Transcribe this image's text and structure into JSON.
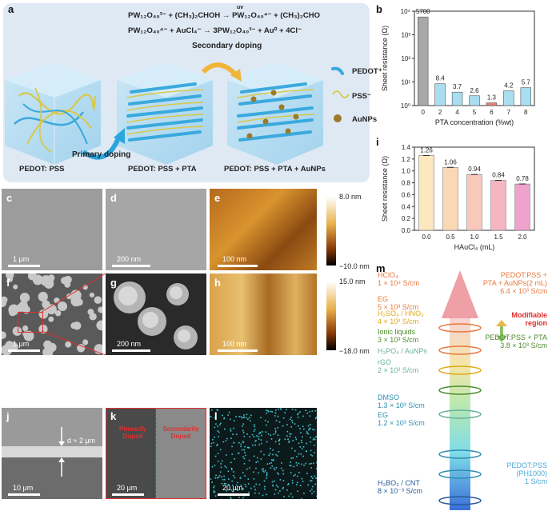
{
  "panel_a": {
    "label": "a",
    "eq1": "PW₁₂O₄₀³⁻ + (CH₃)₂CHOH → PW₁₂O₄₀⁴⁻ + (CH₃)₂CHO",
    "eq1_uv": "uv",
    "eq2": "PW₁₂O₄₀⁴⁻ + AuCl₄⁻ → 3PW₁₂O₄₀³⁻ + Au⁰ + 4Cl⁻",
    "secondary_doping": "Secondary doping",
    "primary_doping": "Primary doping",
    "legend": [
      "PEDOT⁺",
      "PSS⁻",
      "AuNPs"
    ],
    "captions": [
      "PEDOT:  PSS",
      "PEDOT:  PSS + PTA",
      "PEDOT:  PSS + PTA + AuNPs"
    ],
    "colors": {
      "pedot": "#3aa9de",
      "pss": "#d9c84a",
      "aunp": "#9c7a2a",
      "arrow": "#2aa6de"
    }
  },
  "panel_b": {
    "label": "b",
    "chart_data": {
      "type": "bar",
      "categories": [
        "0",
        "2",
        "4",
        "5",
        "6",
        "7",
        "8"
      ],
      "values": [
        5700,
        8.4,
        3.7,
        2.6,
        1.3,
        4.2,
        5.7
      ],
      "value_labels": [
        "5700",
        "8.4",
        "3.7",
        "2.6",
        "1.3",
        "4.2",
        "5.7"
      ],
      "xlabel": "PTA concentration (%wt)",
      "ylabel": "Sheet resistance (Ω)",
      "yscale": "log",
      "ylim": [
        1,
        10000
      ],
      "yticks": [
        "10⁰",
        "10¹",
        "10²",
        "10³",
        "10⁴"
      ],
      "colors": [
        "#a8a8a8",
        "#a9def0",
        "#a9def0",
        "#a9def0",
        "#e8826f",
        "#a9def0",
        "#a9def0"
      ]
    }
  },
  "panel_i": {
    "label": "i",
    "chart_data": {
      "type": "bar",
      "categories": [
        "0.0",
        "0.5",
        "1.0",
        "1.5",
        "2.0"
      ],
      "values": [
        1.26,
        1.06,
        0.94,
        0.84,
        0.78
      ],
      "value_labels": [
        "1.26",
        "1.06",
        "0.94",
        "0.84",
        "0.78"
      ],
      "xlabel": "HAuCl₄ (mL)",
      "ylabel": "Sheet resistance (Ω)",
      "ylim": [
        0,
        1.4
      ],
      "yticks": [
        "0.0",
        "0.2",
        "0.4",
        "0.6",
        "0.8",
        "1.0",
        "1.2",
        "1.4"
      ],
      "colors": [
        "#fde7bf",
        "#fbd7b4",
        "#f8c8bb",
        "#f5b6c2",
        "#efa2cb"
      ]
    }
  },
  "micro": {
    "c": {
      "label": "c",
      "scale": "1 μm"
    },
    "d": {
      "label": "d",
      "scale": "200 nm"
    },
    "e": {
      "label": "e",
      "scale": "100 nm"
    },
    "e_cbar": {
      "max": "8.0 nm",
      "min": "−10.0 nm"
    },
    "f": {
      "label": "f",
      "scale": "1 μm"
    },
    "g": {
      "label": "g",
      "scale": "200 nm"
    },
    "h": {
      "label": "h",
      "scale": "100 nm"
    },
    "h_cbar": {
      "max": "15.0 nm",
      "min": "−18.0 nm"
    },
    "j": {
      "label": "j",
      "scale": "10 μm",
      "thickness": "d ≈ 2 μm"
    },
    "k": {
      "label": "k",
      "scale": "20 μm",
      "left_text": "Primarily Doped",
      "right_text": "Secondarily Doped"
    },
    "l": {
      "label": "l",
      "scale": "20 μm"
    }
  },
  "panel_m": {
    "label": "m",
    "left_items": [
      {
        "name": "HClO₄",
        "value": "1 × 10⁴ S/cm",
        "color": "#e8793f"
      },
      {
        "name": "EG",
        "value": "5 × 10³ S/cm",
        "color": "#e8793f"
      },
      {
        "name": "H₂SO₄ / HNO₃",
        "value": "4 × 10³ S/cm",
        "color": "#e0a81c"
      },
      {
        "name": "Ionic liquids",
        "value": "3 × 10³ S/cm",
        "color": "#4e8c2f"
      },
      {
        "name": "H₃PO₄ / AuNPs",
        "value": "",
        "color": "#6ab0a0"
      },
      {
        "name": "rGO",
        "value": "2 × 10³ S/cm",
        "color": "#6ab0a0"
      },
      {
        "name": "DMSO",
        "value": "1.3 × 10³ S/cm",
        "color": "#2f8fb0"
      },
      {
        "name": "EG",
        "value": "1.2 × 10³ S/cm",
        "color": "#2f8fb0"
      },
      {
        "name": "H₃BO₃ / CNT",
        "value": "8 × 10⁻³ S/cm",
        "color": "#2a5a9a"
      }
    ],
    "right_items": [
      {
        "name": "PEDOT:PSS +",
        "name2": "PTA + AuNPs(2 mL)",
        "value": "6.4 × 10³ S/cm",
        "color": "#e8793f"
      },
      {
        "name": "Modifiable",
        "name2": "region",
        "value": "",
        "color": "#e02a2a"
      },
      {
        "name": "PEDOT:PSS + PTA",
        "name2": "",
        "value": "3.8 × 10³ S/cm",
        "color": "#4e8c2f"
      },
      {
        "name": "PEDOT:PSS",
        "name2": "(PH1000)",
        "value": "1 S/cm",
        "color": "#4aa8d8"
      }
    ]
  }
}
